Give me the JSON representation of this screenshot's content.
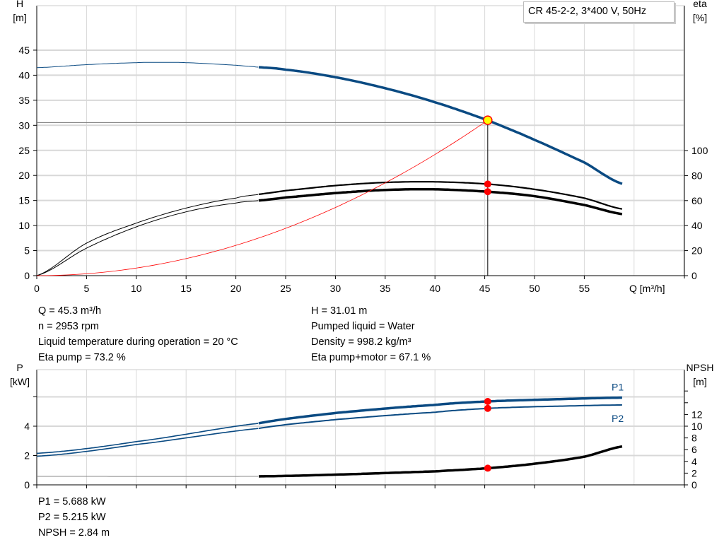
{
  "colors": {
    "head": "#0a4a82",
    "power": "#0a4a82",
    "eta": "#000000",
    "npsh": "#000000",
    "system": "#ff0000",
    "marker": "#ff0000",
    "op_marker": "#ffff00",
    "grid": "#d8d8d8"
  },
  "chart_data": [
    {
      "type": "line",
      "title": "CR 45-2-2, 3*400 V, 50Hz",
      "xlabel": "Q [m³/h]",
      "xlim": [
        0,
        60
      ],
      "xticks": [
        0,
        5,
        10,
        15,
        20,
        25,
        30,
        35,
        40,
        45,
        50,
        55
      ],
      "ylabel": "H",
      "yunit": "[m]",
      "ylim": [
        0,
        50
      ],
      "yticks": [
        0,
        5,
        10,
        15,
        20,
        25,
        30,
        35,
        40,
        45
      ],
      "y2label": "eta",
      "y2unit": "[%]",
      "y2lim": [
        0,
        200
      ],
      "y2ticks": [
        0,
        20,
        40,
        60,
        80,
        100
      ],
      "grid": true,
      "series": [
        {
          "id": "H",
          "axis": "left",
          "x": [
            0,
            5,
            10,
            12,
            15,
            20,
            22.3,
            25,
            30,
            35,
            40,
            45.3,
            50,
            55,
            59
          ],
          "y": [
            41.5,
            42.1,
            42.5,
            42.55,
            42.5,
            42.0,
            41.6,
            41.1,
            39.6,
            37.4,
            34.6,
            31.0,
            27.1,
            22.6,
            18.2
          ]
        },
        {
          "id": "eta_pump",
          "axis": "right",
          "x": [
            0,
            5,
            10,
            15,
            20,
            22.3,
            25,
            30,
            35,
            40,
            45.3,
            50,
            55,
            59
          ],
          "y": [
            0,
            26,
            42,
            54,
            62,
            65,
            68,
            72,
            74.5,
            75,
            73.2,
            69,
            62,
            53
          ]
        },
        {
          "id": "eta_pump_motor",
          "axis": "right",
          "x": [
            0,
            5,
            10,
            15,
            20,
            22.3,
            25,
            30,
            35,
            40,
            45.3,
            50,
            55,
            59
          ],
          "y": [
            0,
            22,
            39,
            51,
            58,
            60,
            62.5,
            66,
            68.5,
            69,
            67.1,
            63.5,
            56.5,
            49
          ]
        },
        {
          "id": "system",
          "axis": "left",
          "x": [
            0,
            45.3
          ],
          "y": [
            0,
            31.01
          ]
        }
      ],
      "operating_point": {
        "Q": 45.3,
        "H": 31.01,
        "eta_pump": 73.2,
        "eta_pump_motor": 67.1
      }
    },
    {
      "type": "line",
      "xlim": [
        0,
        60
      ],
      "ylabel": "P",
      "yunit": "[kW]",
      "ylim": [
        0,
        7.8
      ],
      "yticks": [
        0,
        2,
        4
      ],
      "yticks_unlabeled": [
        6
      ],
      "y2label": "NPSH",
      "y2unit": "[m]",
      "y2lim": [
        0,
        19.6
      ],
      "y2ticks": [
        0,
        2,
        4,
        6,
        8,
        10,
        12
      ],
      "grid": true,
      "series": [
        {
          "id": "P1",
          "name": "P1",
          "axis": "left",
          "x": [
            0,
            10,
            22.3,
            30,
            40,
            45.3,
            50,
            59
          ],
          "y": [
            2.15,
            2.95,
            4.2,
            4.9,
            5.45,
            5.688,
            5.8,
            5.95
          ]
        },
        {
          "id": "P2",
          "name": "P2",
          "axis": "left",
          "x": [
            0,
            10,
            22.3,
            30,
            40,
            45.3,
            50,
            59
          ],
          "y": [
            1.95,
            2.75,
            3.85,
            4.45,
            4.95,
            5.215,
            5.33,
            5.45
          ]
        },
        {
          "id": "NPSH",
          "axis": "right",
          "x": [
            0,
            22.3,
            30,
            40,
            45.3,
            50,
            55,
            59
          ],
          "y": [
            1.45,
            1.45,
            1.75,
            2.3,
            2.84,
            3.6,
            4.8,
            6.6
          ]
        }
      ],
      "operating_point": {
        "Q": 45.3,
        "P1": 5.688,
        "P2": 5.215,
        "NPSH": 2.84
      }
    }
  ],
  "info_top": {
    "left": [
      "Q = 45.3 m³/h",
      "n = 2953 rpm",
      "Liquid temperature during operation = 20 °C",
      "Eta pump = 73.2 %"
    ],
    "right": [
      "H = 31.01 m",
      "Pumped liquid = Water",
      "Density = 998.2 kg/m³",
      "Eta pump+motor = 67.1 %"
    ]
  },
  "info_bottom": [
    "P1 = 5.688 kW",
    "P2 = 5.215 kW",
    "NPSH = 2.84 m"
  ]
}
